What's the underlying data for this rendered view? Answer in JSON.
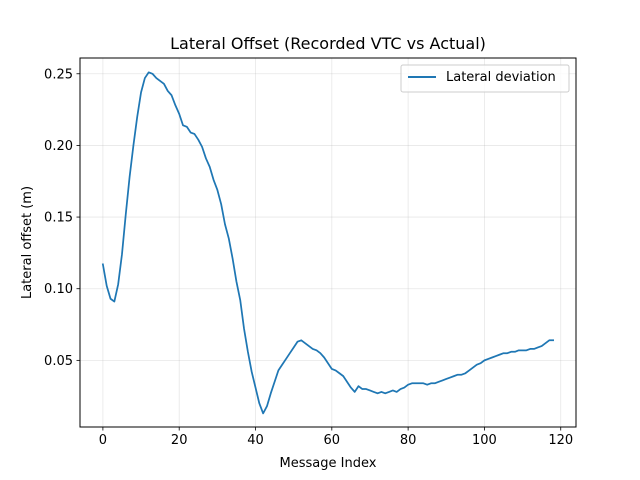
{
  "chart_data": {
    "type": "line",
    "title": "Lateral Offset (Recorded VTC vs Actual)",
    "xlabel": "Message Index",
    "ylabel": "Lateral offset (m)",
    "xlim": [
      -6,
      124
    ],
    "ylim": [
      0.0035,
      0.261
    ],
    "xticks": [
      0,
      20,
      40,
      60,
      80,
      100,
      120
    ],
    "yticks": [
      0.05,
      0.1,
      0.15,
      0.2,
      0.25
    ],
    "ytick_labels": [
      "0.05",
      "0.10",
      "0.15",
      "0.20",
      "0.25"
    ],
    "grid": true,
    "legend_position": "top-right",
    "series": [
      {
        "name": "Lateral deviation",
        "color": "#1f77b4",
        "x": [
          0,
          1,
          2,
          3,
          4,
          5,
          6,
          7,
          8,
          9,
          10,
          11,
          12,
          13,
          14,
          15,
          16,
          17,
          18,
          19,
          20,
          21,
          22,
          23,
          24,
          25,
          26,
          27,
          28,
          29,
          30,
          31,
          32,
          33,
          34,
          35,
          36,
          37,
          38,
          39,
          40,
          41,
          42,
          43,
          44,
          45,
          46,
          47,
          48,
          49,
          50,
          51,
          52,
          53,
          54,
          55,
          56,
          57,
          58,
          59,
          60,
          61,
          62,
          63,
          64,
          65,
          66,
          67,
          68,
          69,
          70,
          71,
          72,
          73,
          74,
          75,
          76,
          77,
          78,
          79,
          80,
          81,
          82,
          83,
          84,
          85,
          86,
          87,
          88,
          89,
          90,
          91,
          92,
          93,
          94,
          95,
          96,
          97,
          98,
          99,
          100,
          101,
          102,
          103,
          104,
          105,
          106,
          107,
          108,
          109,
          110,
          111,
          112,
          113,
          114,
          115,
          116,
          117,
          118
        ],
        "values": [
          0.117,
          0.102,
          0.093,
          0.091,
          0.103,
          0.124,
          0.152,
          0.178,
          0.2,
          0.22,
          0.237,
          0.247,
          0.251,
          0.25,
          0.247,
          0.245,
          0.243,
          0.238,
          0.235,
          0.228,
          0.222,
          0.214,
          0.213,
          0.209,
          0.208,
          0.204,
          0.199,
          0.191,
          0.185,
          0.176,
          0.169,
          0.159,
          0.145,
          0.135,
          0.121,
          0.105,
          0.092,
          0.072,
          0.056,
          0.042,
          0.031,
          0.02,
          0.013,
          0.018,
          0.027,
          0.035,
          0.043,
          0.047,
          0.051,
          0.055,
          0.059,
          0.063,
          0.064,
          0.062,
          0.06,
          0.058,
          0.057,
          0.055,
          0.052,
          0.048,
          0.044,
          0.043,
          0.041,
          0.039,
          0.035,
          0.031,
          0.028,
          0.032,
          0.03,
          0.03,
          0.029,
          0.028,
          0.027,
          0.028,
          0.027,
          0.028,
          0.029,
          0.028,
          0.03,
          0.031,
          0.033,
          0.034,
          0.034,
          0.034,
          0.034,
          0.033,
          0.034,
          0.034,
          0.035,
          0.036,
          0.037,
          0.038,
          0.039,
          0.04,
          0.04,
          0.041,
          0.043,
          0.045,
          0.047,
          0.048,
          0.05,
          0.051,
          0.052,
          0.053,
          0.054,
          0.055,
          0.055,
          0.056,
          0.056,
          0.057,
          0.057,
          0.057,
          0.058,
          0.058,
          0.059,
          0.06,
          0.062,
          0.064,
          0.064
        ]
      }
    ]
  }
}
